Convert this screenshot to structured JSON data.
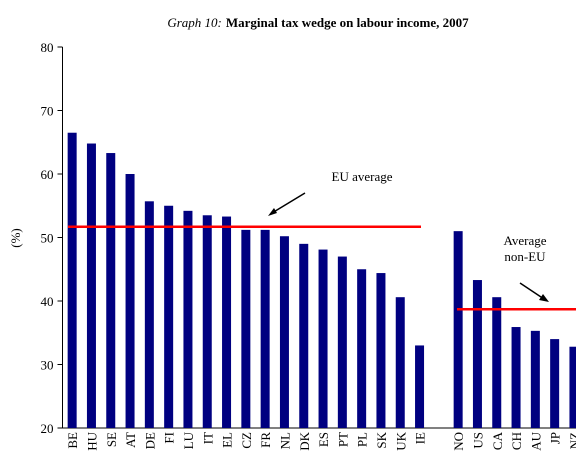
{
  "chart_data": {
    "type": "bar",
    "title_label": "Graph 10:",
    "title": "Marginal tax wedge on labour income, 2007",
    "ylabel": "(%)",
    "categories": [
      "BE",
      "HU",
      "SE",
      "AT",
      "DE",
      "FI",
      "LU",
      "IT",
      "EL",
      "CZ",
      "FR",
      "NL",
      "DK",
      "ES",
      "PT",
      "PL",
      "SK",
      "UK",
      "IE",
      null,
      "NO",
      "US",
      "CA",
      "CH",
      "AU",
      "JP",
      "NZ"
    ],
    "values": [
      66.5,
      64.8,
      63.3,
      60,
      55.7,
      55,
      54.2,
      53.5,
      53.3,
      51.2,
      51.2,
      50.2,
      49,
      48.1,
      47,
      45,
      44.4,
      40.6,
      33,
      null,
      51,
      43.3,
      40.6,
      35.9,
      35.3,
      34,
      32.8
    ],
    "color": "#000080",
    "ylim": [
      20,
      80
    ],
    "yticks": [
      20,
      30,
      40,
      50,
      60,
      70,
      80
    ],
    "reference_lines": [
      {
        "value": 51.7,
        "label": [
          "EU average"
        ],
        "color": "#ff0000"
      },
      {
        "value": 38.7,
        "label": [
          "Average",
          "non-EU"
        ],
        "color": "#ff0000"
      }
    ]
  }
}
